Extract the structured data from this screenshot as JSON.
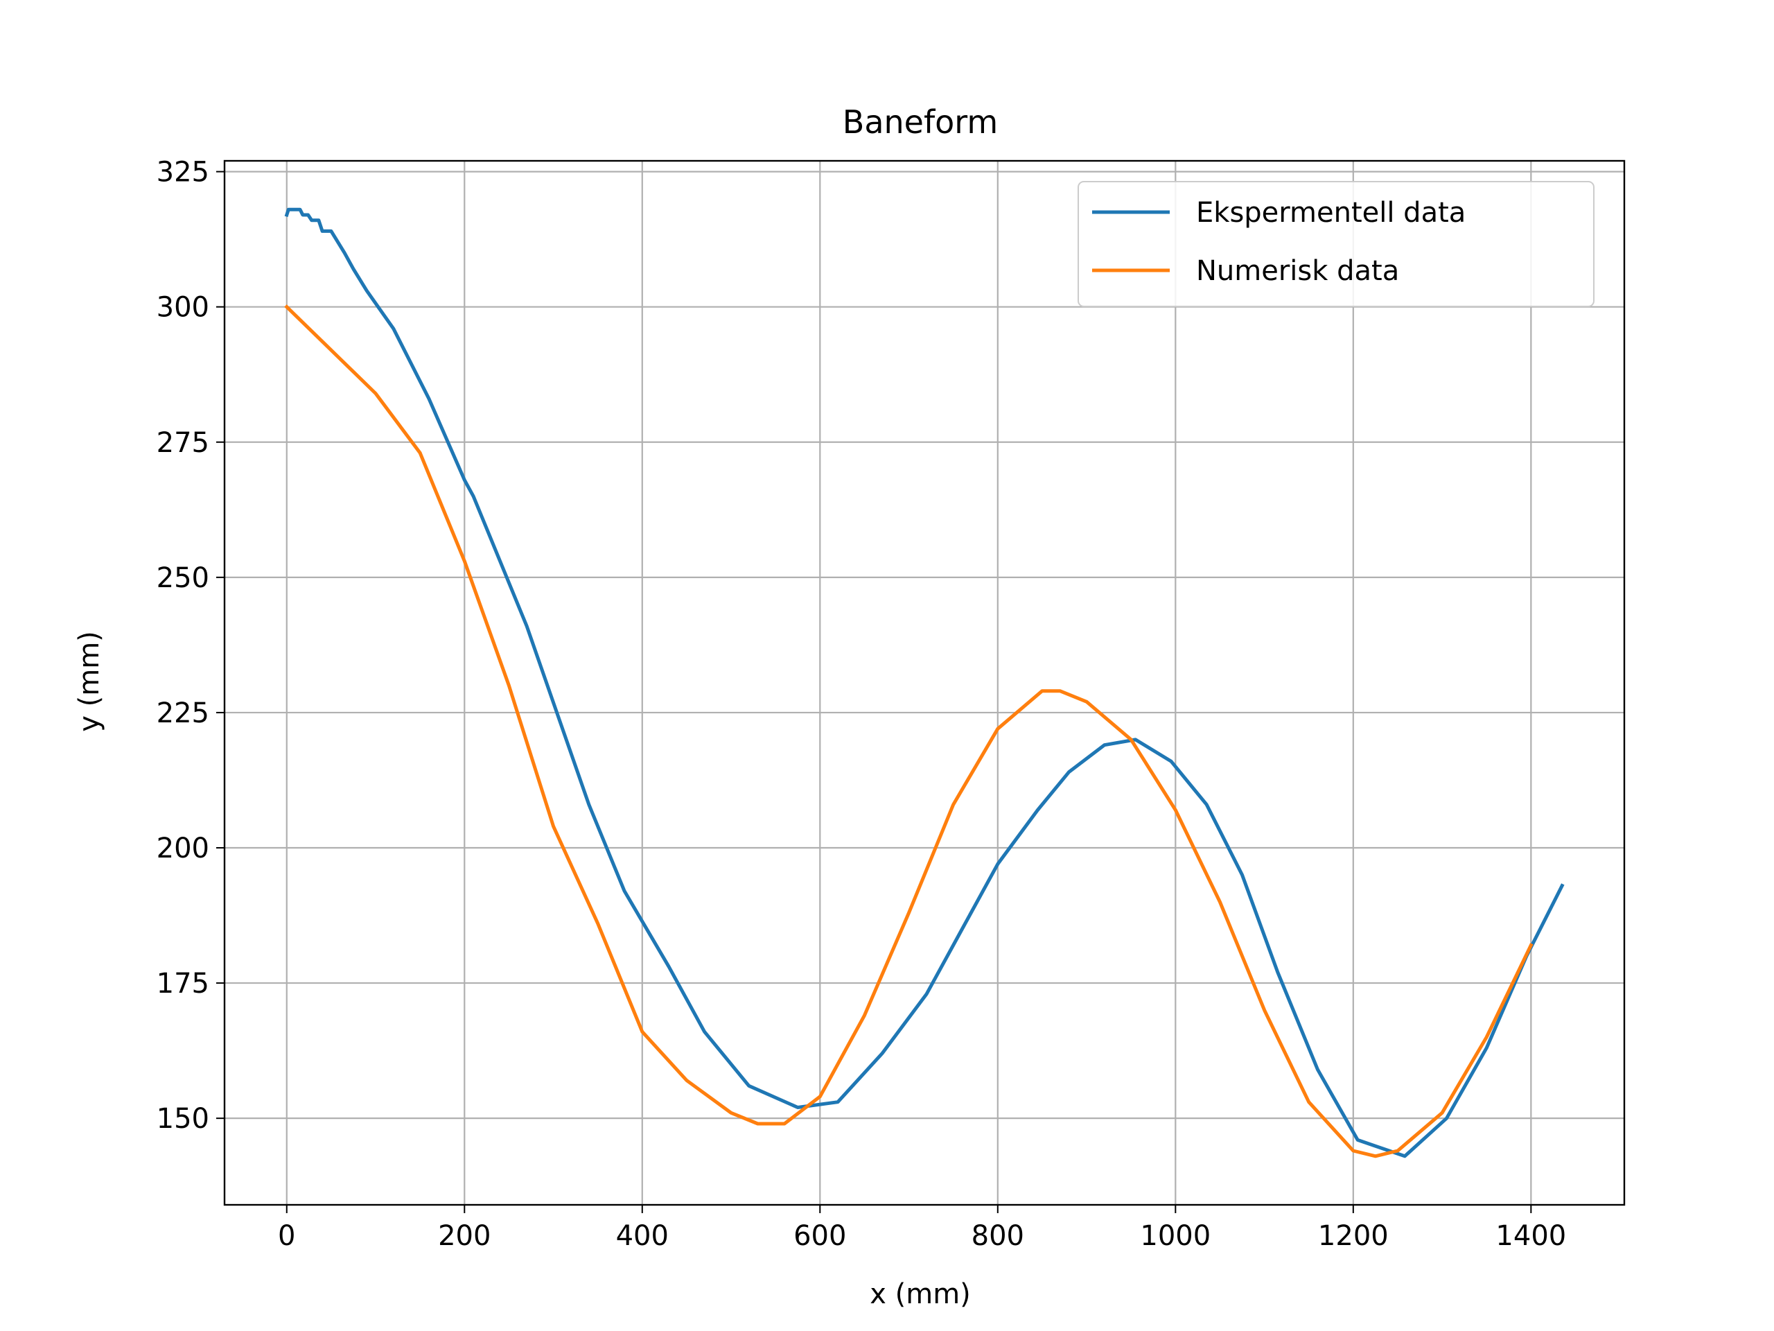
{
  "chart_data": {
    "type": "line",
    "title": "Baneform",
    "xlabel": "x (mm)",
    "ylabel": "y (mm)",
    "xlim": [
      -70,
      1505
    ],
    "ylim": [
      134,
      327
    ],
    "xticks": [
      0,
      200,
      400,
      600,
      800,
      1000,
      1200,
      1400
    ],
    "yticks": [
      150,
      175,
      200,
      225,
      250,
      275,
      300,
      325
    ],
    "grid": true,
    "legend_position": "top-right",
    "series": [
      {
        "name": "Ekspermentell data",
        "color": "#1f77b4",
        "points": [
          [
            0,
            317
          ],
          [
            2,
            318
          ],
          [
            15,
            318
          ],
          [
            18,
            317
          ],
          [
            24,
            317
          ],
          [
            28,
            316
          ],
          [
            36,
            316
          ],
          [
            40,
            314
          ],
          [
            50,
            314
          ],
          [
            65,
            310
          ],
          [
            75,
            307
          ],
          [
            90,
            303
          ],
          [
            120,
            296
          ],
          [
            160,
            283
          ],
          [
            200,
            268
          ],
          [
            210,
            265
          ],
          [
            270,
            241
          ],
          [
            340,
            208
          ],
          [
            380,
            192
          ],
          [
            430,
            178
          ],
          [
            470,
            166
          ],
          [
            520,
            156
          ],
          [
            575,
            152
          ],
          [
            620,
            153
          ],
          [
            670,
            162
          ],
          [
            720,
            173
          ],
          [
            760,
            185
          ],
          [
            800,
            197
          ],
          [
            845,
            207
          ],
          [
            880,
            214
          ],
          [
            920,
            219
          ],
          [
            955,
            220
          ],
          [
            995,
            216
          ],
          [
            1035,
            208
          ],
          [
            1075,
            195
          ],
          [
            1115,
            177
          ],
          [
            1160,
            159
          ],
          [
            1205,
            146
          ],
          [
            1258,
            143
          ],
          [
            1305,
            150
          ],
          [
            1350,
            163
          ],
          [
            1395,
            180
          ],
          [
            1435,
            193
          ]
        ]
      },
      {
        "name": "Numerisk data",
        "color": "#ff7f0e",
        "points": [
          [
            0,
            300
          ],
          [
            50,
            292
          ],
          [
            100,
            284
          ],
          [
            150,
            273
          ],
          [
            200,
            253
          ],
          [
            250,
            230
          ],
          [
            300,
            204
          ],
          [
            350,
            186
          ],
          [
            400,
            166
          ],
          [
            450,
            157
          ],
          [
            500,
            151
          ],
          [
            530,
            149
          ],
          [
            560,
            149
          ],
          [
            600,
            154
          ],
          [
            650,
            169
          ],
          [
            700,
            188
          ],
          [
            750,
            208
          ],
          [
            800,
            222
          ],
          [
            850,
            229
          ],
          [
            870,
            229
          ],
          [
            900,
            227
          ],
          [
            950,
            220
          ],
          [
            1000,
            207
          ],
          [
            1050,
            190
          ],
          [
            1100,
            170
          ],
          [
            1150,
            153
          ],
          [
            1200,
            144
          ],
          [
            1225,
            143
          ],
          [
            1250,
            144
          ],
          [
            1300,
            151
          ],
          [
            1350,
            165
          ],
          [
            1400,
            182
          ]
        ]
      }
    ]
  }
}
